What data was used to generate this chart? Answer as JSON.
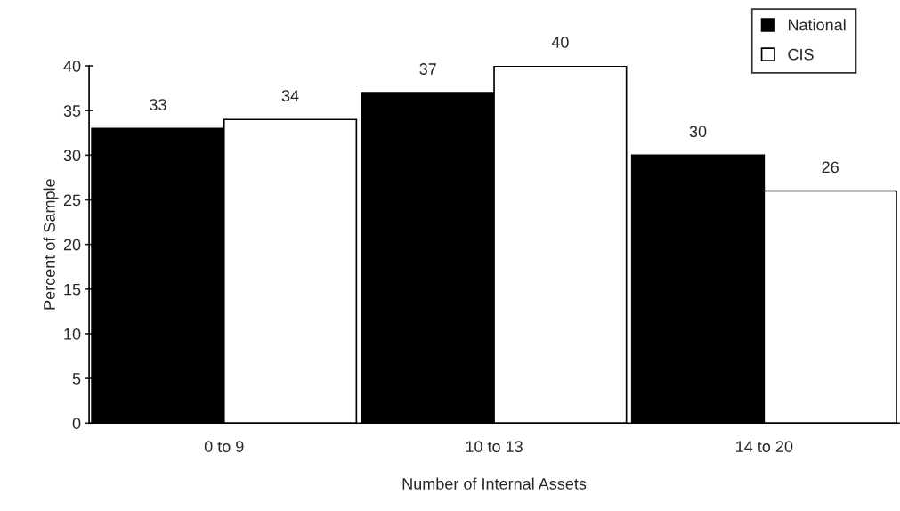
{
  "chart_data": {
    "type": "bar",
    "xlabel": "Number of Internal Assets",
    "ylabel": "Percent of Sample",
    "categories": [
      "0 to 9",
      "10 to 13",
      "14 to 20"
    ],
    "series": [
      {
        "name": "National",
        "color": "#000000",
        "values": [
          33,
          37,
          30
        ]
      },
      {
        "name": "CIS",
        "color": "#ffffff",
        "values": [
          34,
          40,
          26
        ]
      }
    ],
    "ylim": [
      0,
      40
    ],
    "yticks": [
      0,
      5,
      10,
      15,
      20,
      25,
      30,
      35,
      40
    ],
    "grid": false,
    "legend": "top right",
    "data_labels": true
  }
}
